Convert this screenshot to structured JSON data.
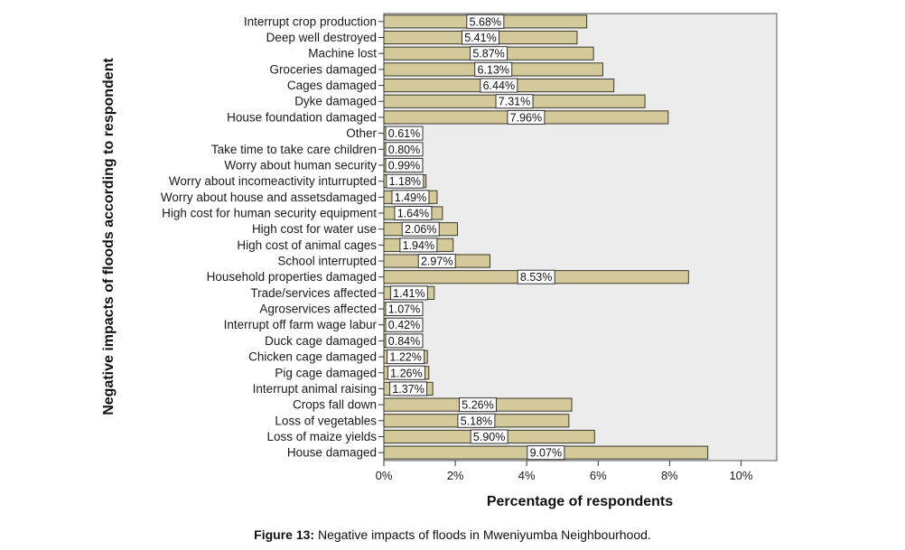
{
  "figure": {
    "caption_prefix": "Figure 13:",
    "caption_text": " Negative impacts of floods in Mweniyumba Neighbourhood."
  },
  "colors": {
    "bar_fill": "#d4c99a",
    "bar_stroke": "#3a3a2a",
    "plot_bg": "#ececec",
    "label_bg": "#ffffff"
  },
  "chart_data": {
    "type": "bar",
    "orientation": "horizontal",
    "xlabel": "Percentage of respondents",
    "ylabel": "Negative impacts of floods according to respondent",
    "xlim": [
      0,
      11
    ],
    "xticks": [
      0,
      2,
      4,
      6,
      8,
      10
    ],
    "xtick_labels": [
      "0%",
      "2%",
      "4%",
      "6%",
      "8%",
      "10%"
    ],
    "grid": false,
    "categories": [
      "Interrupt crop production",
      "Deep well destroyed",
      "Machine lost",
      "Groceries damaged",
      "Cages damaged",
      "Dyke damaged",
      "House foundation damaged",
      "Other",
      "Take time to take care children",
      "Worry about human security",
      "Worry about incomeactivity inturrupted",
      "Worry about house and assetsdamaged",
      "High cost for human security equipment",
      "High cost for water use",
      "High cost of animal cages",
      "School interrupted",
      "Household properties damaged",
      "Trade/services affected",
      "Agroservices affected",
      "Interrupt off farm wage labur",
      "Duck cage damaged",
      "Chicken cage damaged",
      "Pig cage damaged",
      "Interrupt animal raising",
      "Crops fall down",
      "Loss of vegetables",
      "Loss of maize yields",
      "House damaged"
    ],
    "values": [
      5.68,
      5.41,
      5.87,
      6.13,
      6.44,
      7.31,
      7.96,
      0.61,
      0.8,
      0.99,
      1.18,
      1.49,
      1.64,
      2.06,
      1.94,
      2.97,
      8.53,
      1.41,
      1.07,
      0.42,
      0.84,
      1.22,
      1.26,
      1.37,
      5.26,
      5.18,
      5.9,
      9.07
    ],
    "data_labels": [
      "5.68%",
      "5.41%",
      "5.87%",
      "6.13%",
      "6.44%",
      "7.31%",
      "7.96%",
      "0.61%",
      "0.80%",
      "0.99%",
      "1.18%",
      "1.49%",
      "1.64%",
      "2.06%",
      "1.94%",
      "2.97%",
      "8.53%",
      "1.41%",
      "1.07%",
      "0.42%",
      "0.84%",
      "1.22%",
      "1.26%",
      "1.37%",
      "5.26%",
      "5.18%",
      "5.90%",
      "9.07%"
    ]
  }
}
